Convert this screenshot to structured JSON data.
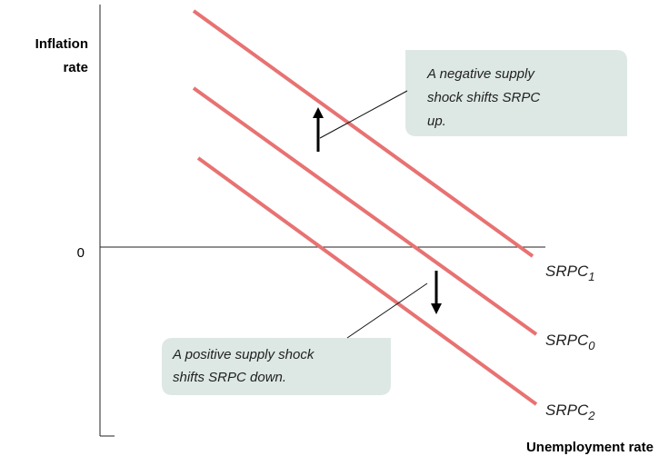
{
  "axes": {
    "y_label": [
      "Inflation",
      "rate"
    ],
    "x_label": "Unemployment rate",
    "zero": "0"
  },
  "curves": [
    {
      "name": "SRPC",
      "sub": "1"
    },
    {
      "name": "SRPC",
      "sub": "0"
    },
    {
      "name": "SRPC",
      "sub": "2"
    }
  ],
  "annotations": [
    {
      "lines": [
        "A negative supply",
        "shock shifts SRPC",
        "up."
      ]
    },
    {
      "lines": [
        "A positive supply shock",
        "shifts SRPC down."
      ]
    }
  ]
}
